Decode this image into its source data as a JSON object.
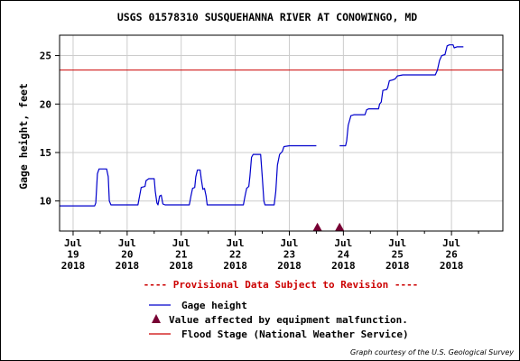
{
  "chart_data": {
    "type": "line",
    "title": "USGS 01578310 SUSQUEHANNA RIVER AT CONOWINGO, MD",
    "ylabel": "Gage height, feet",
    "xlabel": "",
    "ylim": [
      6.9,
      27.1
    ],
    "xlim": [
      18.75,
      26.95
    ],
    "y_ticks": [
      10,
      15,
      20,
      25
    ],
    "x_ticks": [
      {
        "x": 19,
        "lines": [
          "Jul",
          "19",
          "2018"
        ]
      },
      {
        "x": 20,
        "lines": [
          "Jul",
          "20",
          "2018"
        ]
      },
      {
        "x": 21,
        "lines": [
          "Jul",
          "21",
          "2018"
        ]
      },
      {
        "x": 22,
        "lines": [
          "Jul",
          "22",
          "2018"
        ]
      },
      {
        "x": 23,
        "lines": [
          "Jul",
          "23",
          "2018"
        ]
      },
      {
        "x": 24,
        "lines": [
          "Jul",
          "24",
          "2018"
        ]
      },
      {
        "x": 25,
        "lines": [
          "Jul",
          "25",
          "2018"
        ]
      },
      {
        "x": 26,
        "lines": [
          "Jul",
          "26",
          "2018"
        ]
      }
    ],
    "grid": true,
    "flood_stage": 23.5,
    "series": [
      {
        "name": "Gage height",
        "color": "#0000cc",
        "segments": [
          [
            [
              18.75,
              9.5
            ],
            [
              19.4,
              9.5
            ],
            [
              19.42,
              9.8
            ],
            [
              19.45,
              12.8
            ],
            [
              19.48,
              13.3
            ],
            [
              19.62,
              13.3
            ],
            [
              19.65,
              12.5
            ],
            [
              19.67,
              10.0
            ],
            [
              19.7,
              9.6
            ],
            [
              20.0,
              9.6
            ],
            [
              20.2,
              9.6
            ],
            [
              20.23,
              10.5
            ],
            [
              20.26,
              11.4
            ],
            [
              20.33,
              11.5
            ],
            [
              20.35,
              12.1
            ],
            [
              20.4,
              12.3
            ],
            [
              20.5,
              12.3
            ],
            [
              20.52,
              11.0
            ],
            [
              20.55,
              9.8
            ],
            [
              20.57,
              9.6
            ],
            [
              20.6,
              10.5
            ],
            [
              20.63,
              10.6
            ],
            [
              20.66,
              9.7
            ],
            [
              20.7,
              9.6
            ],
            [
              21.0,
              9.6
            ],
            [
              21.15,
              9.6
            ],
            [
              21.18,
              10.5
            ],
            [
              21.21,
              11.3
            ],
            [
              21.25,
              11.4
            ],
            [
              21.27,
              12.5
            ],
            [
              21.3,
              13.2
            ],
            [
              21.35,
              13.2
            ],
            [
              21.37,
              12.3
            ],
            [
              21.4,
              11.2
            ],
            [
              21.43,
              11.3
            ],
            [
              21.46,
              10.5
            ],
            [
              21.48,
              9.6
            ],
            [
              21.8,
              9.6
            ],
            [
              22.0,
              9.6
            ],
            [
              22.15,
              9.6
            ],
            [
              22.18,
              10.5
            ],
            [
              22.21,
              11.3
            ],
            [
              22.25,
              11.5
            ],
            [
              22.27,
              12.5
            ],
            [
              22.3,
              14.5
            ],
            [
              22.33,
              14.8
            ],
            [
              22.47,
              14.8
            ],
            [
              22.5,
              12.5
            ],
            [
              22.53,
              10.0
            ],
            [
              22.55,
              9.6
            ],
            [
              22.72,
              9.6
            ],
            [
              22.75,
              11.0
            ],
            [
              22.78,
              13.7
            ],
            [
              22.82,
              14.8
            ],
            [
              22.87,
              15.1
            ],
            [
              22.9,
              15.6
            ],
            [
              23.0,
              15.7
            ],
            [
              23.5,
              15.7
            ]
          ],
          [
            [
              23.93,
              15.7
            ],
            [
              24.04,
              15.7
            ],
            [
              24.06,
              16.2
            ],
            [
              24.09,
              17.8
            ],
            [
              24.14,
              18.8
            ],
            [
              24.2,
              18.9
            ],
            [
              24.4,
              18.9
            ],
            [
              24.43,
              19.4
            ],
            [
              24.47,
              19.5
            ],
            [
              24.65,
              19.5
            ],
            [
              24.67,
              20.0
            ],
            [
              24.7,
              20.2
            ],
            [
              24.73,
              21.4
            ],
            [
              24.8,
              21.5
            ],
            [
              24.82,
              21.7
            ],
            [
              24.85,
              22.4
            ],
            [
              24.92,
              22.5
            ],
            [
              24.96,
              22.6
            ],
            [
              25.0,
              22.9
            ],
            [
              25.1,
              23.0
            ],
            [
              25.45,
              23.0
            ],
            [
              25.7,
              23.0
            ],
            [
              25.74,
              23.5
            ],
            [
              25.78,
              24.5
            ],
            [
              25.82,
              25.0
            ],
            [
              25.88,
              25.1
            ],
            [
              25.92,
              26.0
            ],
            [
              25.96,
              26.1
            ],
            [
              26.03,
              26.1
            ],
            [
              26.05,
              25.8
            ],
            [
              26.1,
              25.9
            ],
            [
              26.22,
              25.9
            ]
          ]
        ]
      }
    ],
    "malfunction_points": [
      {
        "x": 23.52,
        "y": 7.3
      },
      {
        "x": 23.93,
        "y": 7.3
      }
    ],
    "colors": {
      "series": "#0000cc",
      "flood": "#cc0000",
      "malfunction": "#770033",
      "grid": "#cccccc"
    }
  },
  "notice": "---- Provisional Data Subject to Revision ----",
  "legend": [
    {
      "symbol": "line",
      "color": "#0000cc",
      "label": "Gage height"
    },
    {
      "symbol": "triangle",
      "color": "#770033",
      "label": "Value affected by equipment malfunction."
    },
    {
      "symbol": "line",
      "color": "#cc0000",
      "label": "Flood Stage (National Weather Service)"
    }
  ],
  "credit": "Graph courtesy of the U.S. Geological Survey"
}
